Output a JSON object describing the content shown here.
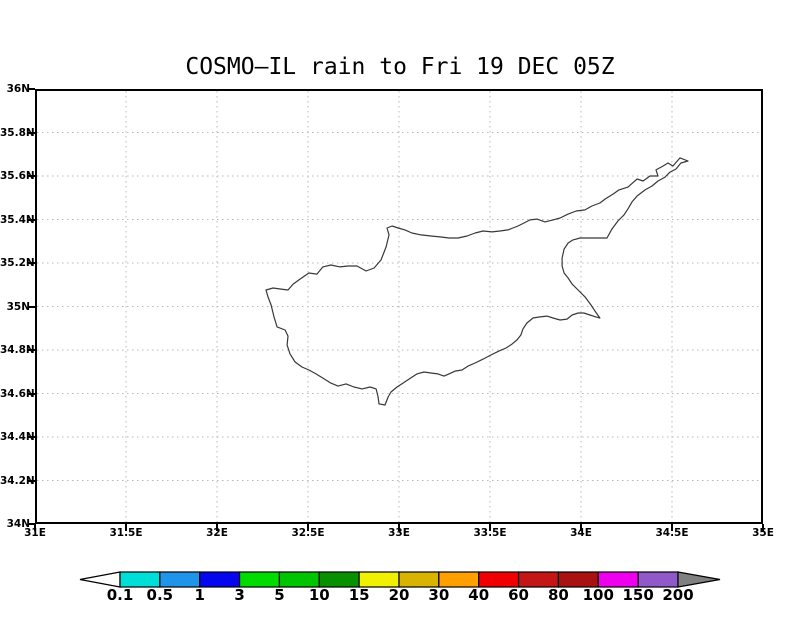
{
  "chart_data": {
    "type": "map",
    "title": "COSMO–IL rain to Fri 19 DEC 05Z",
    "region": "Cyprus coastline",
    "x_axis": {
      "range": [
        31,
        35
      ],
      "tick_labels": [
        "31E",
        "31.5E",
        "32E",
        "32.5E",
        "33E",
        "33.5E",
        "34E",
        "34.5E",
        "35E"
      ]
    },
    "y_axis": {
      "range": [
        34,
        36
      ],
      "tick_labels": [
        "36N",
        "35.8N",
        "35.6N",
        "35.4N",
        "35.2N",
        "35N",
        "34.8N",
        "34.6N",
        "34.4N",
        "34.2N",
        "34N"
      ]
    },
    "grid": {
      "style": "dotted",
      "color": "#b8b8b8"
    },
    "coastline_color": "#383838",
    "precipitation_shading": "none",
    "colorbar": {
      "tick_labels": [
        "0.1",
        "0.5",
        "1",
        "3",
        "5",
        "10",
        "15",
        "20",
        "30",
        "40",
        "60",
        "80",
        "100",
        "150",
        "200"
      ],
      "cell_colors": [
        "#00ded8",
        "#2094e8",
        "#0505ee",
        "#00dc00",
        "#00c400",
        "#089000",
        "#f0f000",
        "#d8b400",
        "#ffa000",
        "#f00000",
        "#c41616",
        "#a81212",
        "#ee00ee",
        "#9058c8"
      ],
      "below_min_color": "#ffffff",
      "above_max_color": "#808080",
      "outline_color": "#000000"
    },
    "coastline_lonlat": [
      [
        34.588,
        35.669
      ],
      [
        34.544,
        35.683
      ],
      [
        34.505,
        35.646
      ],
      [
        34.478,
        35.66
      ],
      [
        34.451,
        35.646
      ],
      [
        34.412,
        35.628
      ],
      [
        34.423,
        35.6
      ],
      [
        34.379,
        35.6
      ],
      [
        34.341,
        35.577
      ],
      [
        34.308,
        35.586
      ],
      [
        34.258,
        35.549
      ],
      [
        34.209,
        35.536
      ],
      [
        34.176,
        35.517
      ],
      [
        34.132,
        35.494
      ],
      [
        34.104,
        35.476
      ],
      [
        34.06,
        35.462
      ],
      [
        34.022,
        35.444
      ],
      [
        33.973,
        35.439
      ],
      [
        33.929,
        35.425
      ],
      [
        33.885,
        35.407
      ],
      [
        33.846,
        35.398
      ],
      [
        33.802,
        35.389
      ],
      [
        33.758,
        35.402
      ],
      [
        33.72,
        35.398
      ],
      [
        33.687,
        35.384
      ],
      [
        33.654,
        35.37
      ],
      [
        33.626,
        35.361
      ],
      [
        33.599,
        35.352
      ],
      [
        33.555,
        35.347
      ],
      [
        33.511,
        35.343
      ],
      [
        33.462,
        35.347
      ],
      [
        33.418,
        35.338
      ],
      [
        33.374,
        35.324
      ],
      [
        33.324,
        35.315
      ],
      [
        33.275,
        35.315
      ],
      [
        33.225,
        35.32
      ],
      [
        33.176,
        35.324
      ],
      [
        33.121,
        35.329
      ],
      [
        33.071,
        35.338
      ],
      [
        33.033,
        35.352
      ],
      [
        32.995,
        35.361
      ],
      [
        32.962,
        35.37
      ],
      [
        32.934,
        35.361
      ],
      [
        32.945,
        35.329
      ],
      [
        32.929,
        35.274
      ],
      [
        32.901,
        35.214
      ],
      [
        32.863,
        35.177
      ],
      [
        32.819,
        35.163
      ],
      [
        32.769,
        35.186
      ],
      [
        32.72,
        35.186
      ],
      [
        32.676,
        35.182
      ],
      [
        32.626,
        35.191
      ],
      [
        32.582,
        35.182
      ],
      [
        32.549,
        35.149
      ],
      [
        32.505,
        35.154
      ],
      [
        32.456,
        35.126
      ],
      [
        32.418,
        35.103
      ],
      [
        32.39,
        35.076
      ],
      [
        32.352,
        35.08
      ],
      [
        32.308,
        35.085
      ],
      [
        32.269,
        35.076
      ],
      [
        32.28,
        35.044
      ],
      [
        32.297,
        35.007
      ],
      [
        32.313,
        34.952
      ],
      [
        32.33,
        34.906
      ],
      [
        32.374,
        34.892
      ],
      [
        32.39,
        34.864
      ],
      [
        32.385,
        34.823
      ],
      [
        32.401,
        34.782
      ],
      [
        32.429,
        34.745
      ],
      [
        32.467,
        34.722
      ],
      [
        32.505,
        34.708
      ],
      [
        32.544,
        34.69
      ],
      [
        32.582,
        34.671
      ],
      [
        32.626,
        34.648
      ],
      [
        32.665,
        34.634
      ],
      [
        32.709,
        34.644
      ],
      [
        32.753,
        34.63
      ],
      [
        32.797,
        34.621
      ],
      [
        32.841,
        34.63
      ],
      [
        32.874,
        34.621
      ],
      [
        32.885,
        34.584
      ],
      [
        32.89,
        34.552
      ],
      [
        32.923,
        34.547
      ],
      [
        32.94,
        34.584
      ],
      [
        32.956,
        34.607
      ],
      [
        32.989,
        34.63
      ],
      [
        33.022,
        34.648
      ],
      [
        33.055,
        34.666
      ],
      [
        33.099,
        34.69
      ],
      [
        33.137,
        34.699
      ],
      [
        33.181,
        34.694
      ],
      [
        33.214,
        34.69
      ],
      [
        33.247,
        34.68
      ],
      [
        33.275,
        34.69
      ],
      [
        33.308,
        34.703
      ],
      [
        33.346,
        34.708
      ],
      [
        33.379,
        34.726
      ],
      [
        33.418,
        34.74
      ],
      [
        33.462,
        34.758
      ],
      [
        33.505,
        34.777
      ],
      [
        33.549,
        34.795
      ],
      [
        33.588,
        34.809
      ],
      [
        33.621,
        34.827
      ],
      [
        33.648,
        34.846
      ],
      [
        33.67,
        34.869
      ],
      [
        33.681,
        34.896
      ],
      [
        33.703,
        34.924
      ],
      [
        33.736,
        34.947
      ],
      [
        33.774,
        34.952
      ],
      [
        33.813,
        34.956
      ],
      [
        33.846,
        34.947
      ],
      [
        33.885,
        34.938
      ],
      [
        33.923,
        34.942
      ],
      [
        33.951,
        34.961
      ],
      [
        33.984,
        34.97
      ],
      [
        34.016,
        34.97
      ],
      [
        34.049,
        34.961
      ],
      [
        34.082,
        34.952
      ],
      [
        34.104,
        34.947
      ],
      [
        34.077,
        34.979
      ],
      [
        34.055,
        35.007
      ],
      [
        34.022,
        35.044
      ],
      [
        33.984,
        35.076
      ],
      [
        33.951,
        35.103
      ],
      [
        33.929,
        35.131
      ],
      [
        33.907,
        35.154
      ],
      [
        33.896,
        35.186
      ],
      [
        33.896,
        35.223
      ],
      [
        33.907,
        35.264
      ],
      [
        33.929,
        35.292
      ],
      [
        33.956,
        35.306
      ],
      [
        33.995,
        35.315
      ],
      [
        34.143,
        35.315
      ],
      [
        34.17,
        35.356
      ],
      [
        34.203,
        35.393
      ],
      [
        34.236,
        35.421
      ],
      [
        34.258,
        35.449
      ],
      [
        34.28,
        35.481
      ],
      [
        34.308,
        35.508
      ],
      [
        34.352,
        35.536
      ],
      [
        34.39,
        35.554
      ],
      [
        34.423,
        35.577
      ],
      [
        34.462,
        35.595
      ],
      [
        34.489,
        35.618
      ],
      [
        34.522,
        35.632
      ],
      [
        34.549,
        35.66
      ]
    ]
  }
}
